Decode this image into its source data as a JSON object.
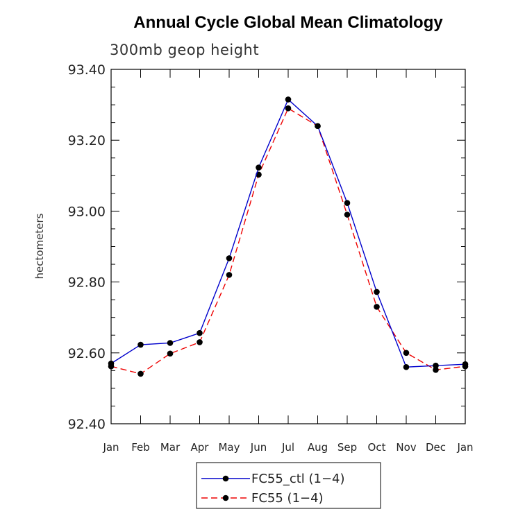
{
  "chart_data": {
    "type": "line",
    "title": "Annual Cycle Global Mean Climatology",
    "subtitle": "300mb geop height",
    "xlabel": "",
    "ylabel": "hectometers",
    "categories": [
      "Jan",
      "Feb",
      "Mar",
      "Apr",
      "May",
      "Jun",
      "Jul",
      "Aug",
      "Sep",
      "Oct",
      "Nov",
      "Dec",
      "Jan"
    ],
    "ylim": [
      92.4,
      93.4
    ],
    "yticks": [
      "92.40",
      "92.60",
      "92.80",
      "93.00",
      "93.20",
      "93.40"
    ],
    "series": [
      {
        "name": "FC55_ctl (1−4)",
        "color": "#0000cc",
        "style": "solid",
        "values": [
          92.57,
          92.623,
          92.628,
          92.656,
          92.867,
          93.123,
          93.315,
          93.24,
          93.023,
          92.772,
          92.56,
          92.564,
          92.568
        ]
      },
      {
        "name": "FC55 (1−4)",
        "color": "#ee0000",
        "style": "dashed",
        "values": [
          92.562,
          92.541,
          92.598,
          92.63,
          92.82,
          93.103,
          93.29,
          93.24,
          92.99,
          92.73,
          92.6,
          92.552,
          92.562
        ]
      }
    ],
    "legend_position": "bottom"
  }
}
